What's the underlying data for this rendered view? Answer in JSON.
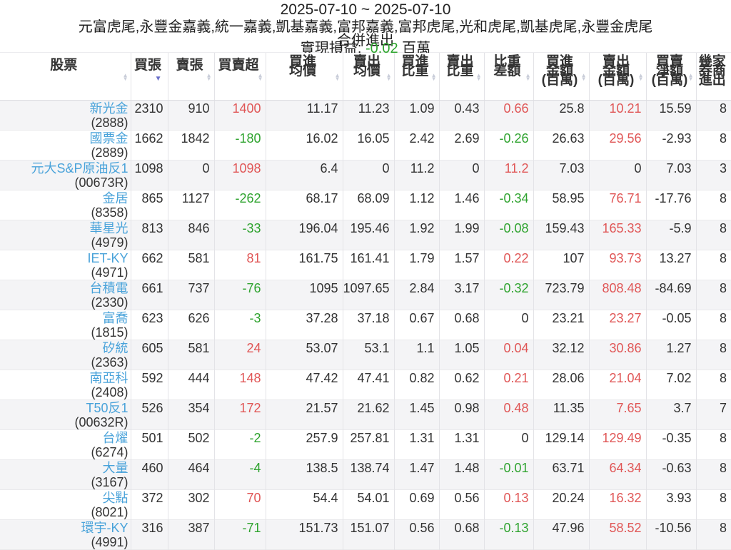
{
  "title": {
    "date_range": "2025-07-10 ~ 2025-07-10",
    "brokers": "元富虎尾,永豐金嘉義,統一嘉義,凱基嘉義,富邦嘉義,富邦虎尾,光和虎尾,凱基虎尾,永豐金虎尾",
    "merge_label": "合併進出",
    "pnl_label": "實現損益:",
    "pnl_value": "-0.02",
    "pnl_unit": "百萬"
  },
  "colors": {
    "positive_red": "#e05656",
    "negative_green": "#2fa32f",
    "pnl_green": "#2ea52e",
    "stock_link_blue": "#4aa3da",
    "sort_active_blue": "#6a6fc9"
  },
  "table": {
    "columns": [
      {
        "key": "stock",
        "label": "股票",
        "lines": [
          "股票"
        ],
        "sort": "both",
        "color": "none"
      },
      {
        "key": "buy-lots",
        "label": "買張",
        "lines": [
          "買張"
        ],
        "sort": "desc",
        "color": "none"
      },
      {
        "key": "sell-lots",
        "label": "賣張",
        "lines": [
          "賣張"
        ],
        "sort": "both",
        "color": "none"
      },
      {
        "key": "net-lots",
        "label": "買賣超",
        "lines": [
          "買賣超"
        ],
        "sort": "both",
        "color": "sign"
      },
      {
        "key": "avg-buy-price",
        "label": "買進均價",
        "lines": [
          "買進",
          "均價"
        ],
        "sort": "both",
        "color": "none"
      },
      {
        "key": "avg-sell-price",
        "label": "賣出均價",
        "lines": [
          "賣出",
          "均價"
        ],
        "sort": "both",
        "color": "none"
      },
      {
        "key": "buy-weight",
        "label": "買進比重",
        "lines": [
          "買進",
          "比重"
        ],
        "sort": "both",
        "color": "none"
      },
      {
        "key": "sell-weight",
        "label": "賣出比重",
        "lines": [
          "賣出",
          "比重"
        ],
        "sort": "both",
        "color": "none"
      },
      {
        "key": "weight-diff",
        "label": "比重差額",
        "lines": [
          "比重",
          "差額"
        ],
        "sort": "both",
        "color": "sign"
      },
      {
        "key": "buy-amount",
        "label": "買進金額(百萬)",
        "lines": [
          "買進",
          "金額",
          "(百萬)"
        ],
        "sort": "both",
        "color": "none"
      },
      {
        "key": "sell-amount",
        "label": "賣出金額(百萬)",
        "lines": [
          "賣出",
          "金額",
          "(百萬)"
        ],
        "sort": "both",
        "color": "pos_red"
      },
      {
        "key": "net-amount",
        "label": "買賣淨額(百萬)",
        "lines": [
          "買賣",
          "淨額",
          "(百萬)"
        ],
        "sort": "both",
        "color": "none"
      },
      {
        "key": "broker-count",
        "label": "幾家券商進出",
        "lines": [
          "幾家",
          "券商",
          "進出"
        ],
        "sort": "none",
        "color": "none"
      }
    ],
    "rows": [
      {
        "name": "新光金",
        "code": "(2888)",
        "values": [
          2310,
          910,
          1400,
          11.17,
          11.23,
          1.09,
          0.43,
          0.66,
          25.8,
          10.21,
          15.59,
          8
        ]
      },
      {
        "name": "國票金",
        "code": "(2889)",
        "values": [
          1662,
          1842,
          -180,
          16.02,
          16.05,
          2.42,
          2.69,
          -0.26,
          26.63,
          29.56,
          -2.93,
          8
        ]
      },
      {
        "name": "元大S&P原油反1",
        "code": "(00673R)",
        "values": [
          1098,
          0,
          1098,
          6.4,
          0,
          11.2,
          0,
          11.2,
          7.03,
          0,
          7.03,
          3
        ]
      },
      {
        "name": "金居",
        "code": "(8358)",
        "values": [
          865,
          1127,
          -262,
          68.17,
          68.09,
          1.12,
          1.46,
          -0.34,
          58.95,
          76.71,
          -17.76,
          8
        ]
      },
      {
        "name": "華星光",
        "code": "(4979)",
        "values": [
          813,
          846,
          -33,
          196.04,
          195.46,
          1.92,
          1.99,
          -0.08,
          159.43,
          165.33,
          -5.9,
          8
        ]
      },
      {
        "name": "IET-KY",
        "code": "(4971)",
        "values": [
          662,
          581,
          81,
          161.75,
          161.41,
          1.79,
          1.57,
          0.22,
          107,
          93.73,
          13.27,
          8
        ]
      },
      {
        "name": "台積電",
        "code": "(2330)",
        "values": [
          661,
          737,
          -76,
          1095,
          1097.65,
          2.84,
          3.17,
          -0.32,
          723.79,
          808.48,
          -84.69,
          8
        ]
      },
      {
        "name": "富喬",
        "code": "(1815)",
        "values": [
          623,
          626,
          -3,
          37.28,
          37.18,
          0.67,
          0.68,
          0,
          23.21,
          23.27,
          -0.05,
          8
        ]
      },
      {
        "name": "矽統",
        "code": "(2363)",
        "values": [
          605,
          581,
          24,
          53.07,
          53.1,
          1.1,
          1.05,
          0.04,
          32.12,
          30.86,
          1.27,
          8
        ]
      },
      {
        "name": "南亞科",
        "code": "(2408)",
        "values": [
          592,
          444,
          148,
          47.42,
          47.41,
          0.82,
          0.62,
          0.21,
          28.06,
          21.04,
          7.02,
          8
        ]
      },
      {
        "name": "T50反1",
        "code": "(00632R)",
        "values": [
          526,
          354,
          172,
          21.57,
          21.62,
          1.45,
          0.98,
          0.48,
          11.35,
          7.65,
          3.7,
          7
        ]
      },
      {
        "name": "台燿",
        "code": "(6274)",
        "values": [
          501,
          502,
          -2,
          257.9,
          257.81,
          1.31,
          1.31,
          0,
          129.14,
          129.49,
          -0.35,
          8
        ]
      },
      {
        "name": "大量",
        "code": "(3167)",
        "values": [
          460,
          464,
          -4,
          138.5,
          138.74,
          1.47,
          1.48,
          -0.01,
          63.71,
          64.34,
          -0.63,
          8
        ]
      },
      {
        "name": "尖點",
        "code": "(8021)",
        "values": [
          372,
          302,
          70,
          54.4,
          54.01,
          0.69,
          0.56,
          0.13,
          20.24,
          16.32,
          3.93,
          8
        ]
      },
      {
        "name": "環宇-KY",
        "code": "(4991)",
        "values": [
          316,
          387,
          -71,
          151.73,
          151.07,
          0.56,
          0.68,
          -0.13,
          47.96,
          58.52,
          -10.56,
          8
        ]
      }
    ]
  }
}
